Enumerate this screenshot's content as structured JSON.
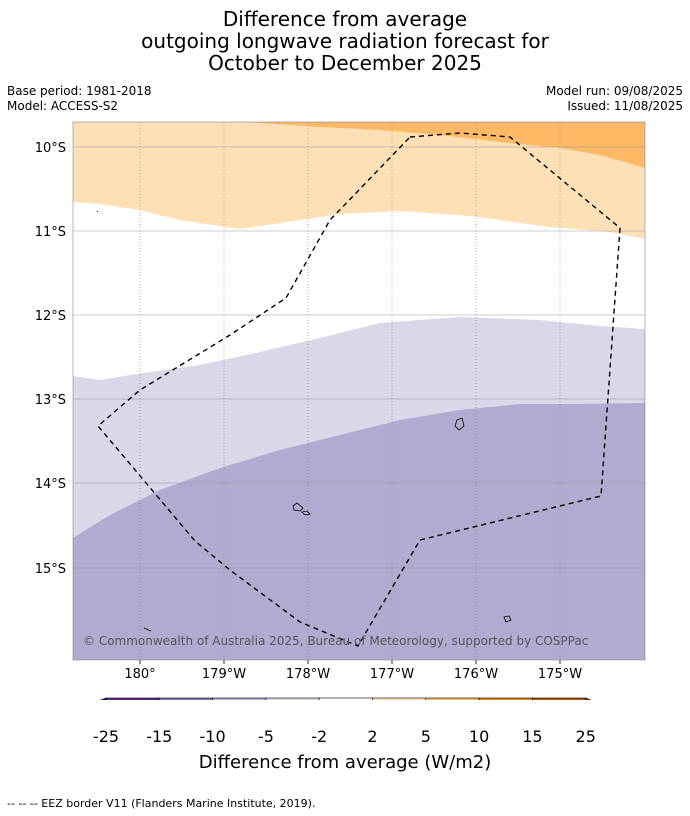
{
  "title": {
    "line1": "Difference from average",
    "line2": "outgoing longwave radiation forecast for",
    "line3": "October to December 2025"
  },
  "info": {
    "base_period": "Base period: 1981-2018",
    "model": "Model: ACCESS-S2",
    "model_run": "Model run: 09/08/2025",
    "issued": "Issued: 11/08/2025"
  },
  "map": {
    "lat_labels": [
      "10°S",
      "11°S",
      "12°S",
      "13°S",
      "14°S",
      "15°S"
    ],
    "lon_labels": [
      "180°",
      "179°W",
      "178°W",
      "177°W",
      "176°W",
      "175°W"
    ],
    "copyright": "© Commonwealth of Australia 2025, Bureau of Meteorology, supported by COSPPac",
    "colors": {
      "c_5_10": "#fdb966",
      "c_2_5": "#fde0b6",
      "c_neutral": "#ffffff",
      "c_m5_m2": "#d8d8e8",
      "c_m10_m5": "#b1abd2",
      "eez_border": "#000000"
    }
  },
  "colorbar": {
    "tick_labels": [
      "-25",
      "-15",
      "-10",
      "-5",
      "-2",
      "2",
      "5",
      "10",
      "15",
      "25"
    ],
    "colors": [
      "#3f0d5c",
      "#5b2a8b",
      "#8273b0",
      "#b1abd2",
      "#d8d8e8",
      "#ffffff",
      "#fde0b6",
      "#fdb966",
      "#e2861c",
      "#b35806",
      "#7f3b08"
    ],
    "title": "Difference from average (W/m2)"
  },
  "footnote": "-- -- -- EEZ border V11 (Flanders Marine Institute, 2019)."
}
